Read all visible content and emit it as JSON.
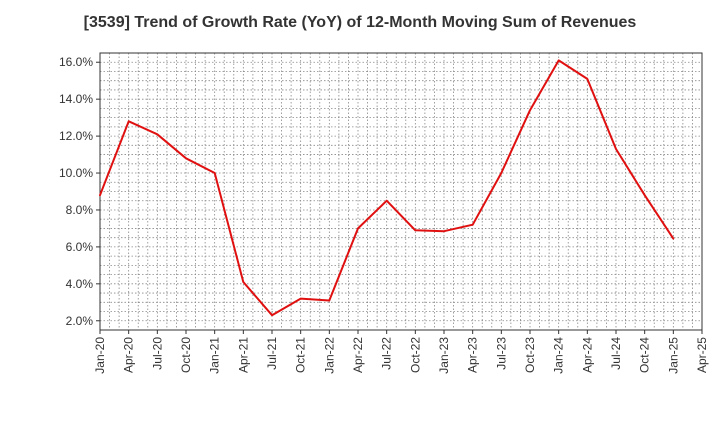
{
  "chart_data": {
    "type": "line",
    "title": "[3539]  Trend of Growth Rate (YoY) of 12-Month Moving Sum of Revenues",
    "xlabel": "",
    "ylabel": "",
    "x": [
      "Jan-20",
      "Apr-20",
      "Jul-20",
      "Oct-20",
      "Jan-21",
      "Apr-21",
      "Jul-21",
      "Oct-21",
      "Jan-22",
      "Apr-22",
      "Jul-22",
      "Oct-22",
      "Jan-23",
      "Apr-23",
      "Jul-23",
      "Oct-23",
      "Jan-24",
      "Apr-24",
      "Jul-24",
      "Oct-24",
      "Jan-25"
    ],
    "x_tick_labels": [
      "Jan-20",
      "Apr-20",
      "Jul-20",
      "Oct-20",
      "Jan-21",
      "Apr-21",
      "Jul-21",
      "Oct-21",
      "Jan-22",
      "Apr-22",
      "Jul-22",
      "Oct-22",
      "Jan-23",
      "Apr-23",
      "Jul-23",
      "Oct-23",
      "Jan-24",
      "Apr-24",
      "Jul-24",
      "Oct-24",
      "Jan-25",
      "Apr-25"
    ],
    "series": [
      {
        "values": [
          8.8,
          12.8,
          12.1,
          10.8,
          10.0,
          4.1,
          2.3,
          3.2,
          3.1,
          7.0,
          8.5,
          6.9,
          6.85,
          7.2,
          10.0,
          13.4,
          16.1,
          15.1,
          11.3,
          8.8,
          6.45
        ]
      }
    ],
    "ylim": [
      1.5,
      16.5
    ],
    "y_ticks": [
      2.0,
      4.0,
      6.0,
      8.0,
      10.0,
      12.0,
      14.0,
      16.0
    ],
    "y_tick_format": "percent_1dp",
    "grid": true,
    "line_color": "#e01010",
    "grid_color": "#888888",
    "axis_color": "#333333"
  }
}
